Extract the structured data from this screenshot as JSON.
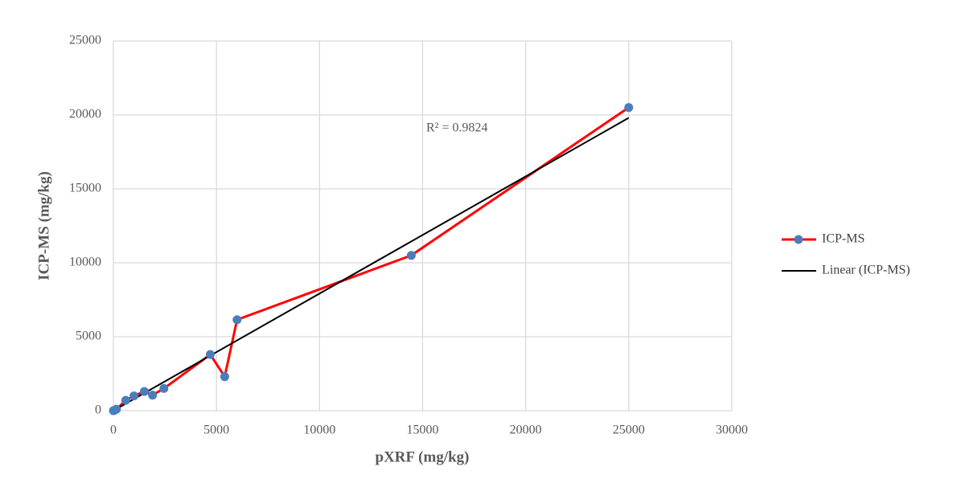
{
  "chart_data": {
    "type": "scatter",
    "xlabel": "pXRF (mg/kg)",
    "ylabel": "ICP-MS (mg/kg)",
    "annotation": "R² = 0.9824",
    "series": [
      {
        "name": "ICP-MS",
        "color": "#ff0000",
        "marker_color": "#4a7ebb",
        "x": [
          0,
          50,
          150,
          600,
          1000,
          1500,
          1900,
          2450,
          4700,
          5400,
          6000,
          14450,
          25000
        ],
        "values": [
          0,
          20,
          100,
          700,
          1000,
          1300,
          1050,
          1500,
          3800,
          2300,
          6150,
          10500,
          20500
        ]
      },
      {
        "name": "Linear (ICP-MS)",
        "color": "#000000",
        "x": [
          0,
          25000
        ],
        "values": [
          0,
          19800
        ]
      }
    ],
    "xlim": [
      0,
      30000
    ],
    "xticks": [
      0,
      5000,
      10000,
      15000,
      20000,
      25000,
      30000
    ],
    "ylim": [
      0,
      25000
    ],
    "yticks": [
      0,
      5000,
      10000,
      15000,
      20000,
      25000
    ],
    "grid": true,
    "legend": "right"
  }
}
